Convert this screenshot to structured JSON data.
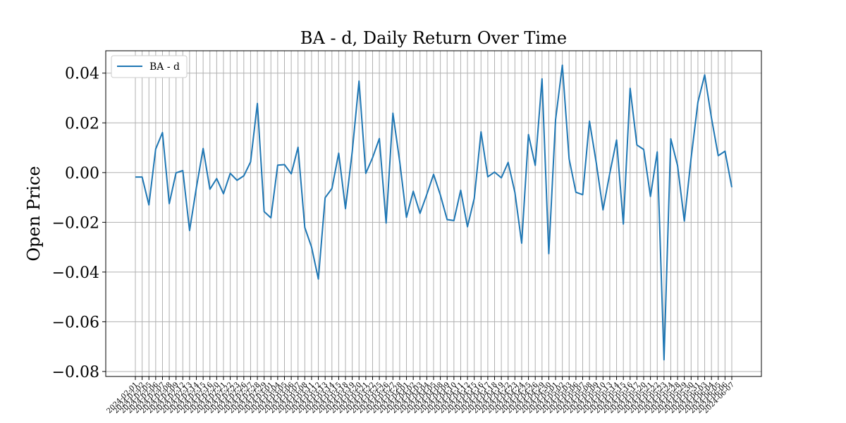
{
  "chart_data": {
    "type": "line",
    "title": "BA - d, Daily Return Over Time",
    "xlabel": "",
    "ylabel": "Open Price",
    "ylim": [
      -0.082,
      0.049
    ],
    "yticks": [
      0.04,
      0.02,
      0.0,
      -0.02,
      -0.04,
      -0.06,
      -0.08
    ],
    "ytick_labels": [
      "0.04",
      "0.02",
      "0.00",
      "−0.02",
      "−0.04",
      "−0.06",
      "−0.08"
    ],
    "grid": true,
    "legend": "upper-left",
    "x": [
      "2024-02-01",
      "2024-02-02",
      "2024-02-05",
      "2024-02-06",
      "2024-02-07",
      "2024-02-08",
      "2024-02-09",
      "2024-02-12",
      "2024-02-13",
      "2024-02-14",
      "2024-02-15",
      "2024-02-16",
      "2024-02-20",
      "2024-02-21",
      "2024-02-22",
      "2024-02-23",
      "2024-02-26",
      "2024-02-27",
      "2024-02-28",
      "2024-02-29",
      "2024-03-01",
      "2024-03-04",
      "2024-03-05",
      "2024-03-06",
      "2024-03-07",
      "2024-03-08",
      "2024-03-11",
      "2024-03-12",
      "2024-03-13",
      "2024-03-14",
      "2024-03-15",
      "2024-03-18",
      "2024-03-19",
      "2024-03-20",
      "2024-03-21",
      "2024-03-22",
      "2024-03-25",
      "2024-03-26",
      "2024-03-27",
      "2024-03-28",
      "2024-04-01",
      "2024-04-02",
      "2024-04-03",
      "2024-04-04",
      "2024-04-05",
      "2024-04-08",
      "2024-04-09",
      "2024-04-10",
      "2024-04-11",
      "2024-04-12",
      "2024-04-15",
      "2024-04-16",
      "2024-04-17",
      "2024-04-18",
      "2024-04-19",
      "2024-04-22",
      "2024-04-23",
      "2024-04-24",
      "2024-04-25",
      "2024-04-26",
      "2024-04-29",
      "2024-04-30",
      "2024-05-01",
      "2024-05-02",
      "2024-05-03",
      "2024-05-06",
      "2024-05-07",
      "2024-05-08",
      "2024-05-09",
      "2024-05-10",
      "2024-05-13",
      "2024-05-14",
      "2024-05-15",
      "2024-05-16",
      "2024-05-17",
      "2024-05-20",
      "2024-05-21",
      "2024-05-22",
      "2024-05-23",
      "2024-05-24",
      "2024-05-28",
      "2024-05-29",
      "2024-05-30",
      "2024-05-31",
      "2024-06-03",
      "2024-06-04",
      "2024-06-05",
      "2024-06-06",
      "2024-06-07"
    ],
    "series": [
      {
        "name": "BA - d",
        "color": "#1f77b4",
        "values": [
          -0.0018,
          -0.0018,
          -0.013,
          0.0095,
          0.0161,
          -0.0125,
          -0.0001,
          0.0008,
          -0.0233,
          -0.0061,
          0.0097,
          -0.0067,
          -0.0024,
          -0.0085,
          -0.0003,
          -0.0031,
          -0.0013,
          0.0043,
          0.0278,
          -0.0157,
          -0.0182,
          0.003,
          0.0032,
          -0.0005,
          0.0102,
          -0.0221,
          -0.03,
          -0.0428,
          -0.0101,
          -0.0064,
          0.0078,
          -0.0145,
          0.0085,
          0.0368,
          -0.0003,
          0.006,
          0.0137,
          -0.0203,
          0.0239,
          0.0045,
          -0.018,
          -0.0075,
          -0.0164,
          -0.0088,
          -0.0007,
          -0.009,
          -0.0189,
          -0.0193,
          -0.0071,
          -0.0218,
          -0.0104,
          0.0164,
          -0.0017,
          0.0002,
          -0.0021,
          0.0041,
          -0.008,
          -0.0284,
          0.0153,
          0.0029,
          0.0377,
          -0.0326,
          0.0213,
          0.0432,
          0.0055,
          -0.0079,
          -0.0089,
          0.0207,
          0.004,
          -0.015,
          -0.0003,
          0.0131,
          -0.0207,
          0.0339,
          0.0111,
          0.0093,
          -0.0096,
          0.0083,
          -0.0753,
          0.0136,
          0.0028,
          -0.0195,
          0.0059,
          0.0283,
          0.0393,
          0.022,
          0.0068,
          0.0086,
          -0.0059
        ]
      }
    ]
  }
}
